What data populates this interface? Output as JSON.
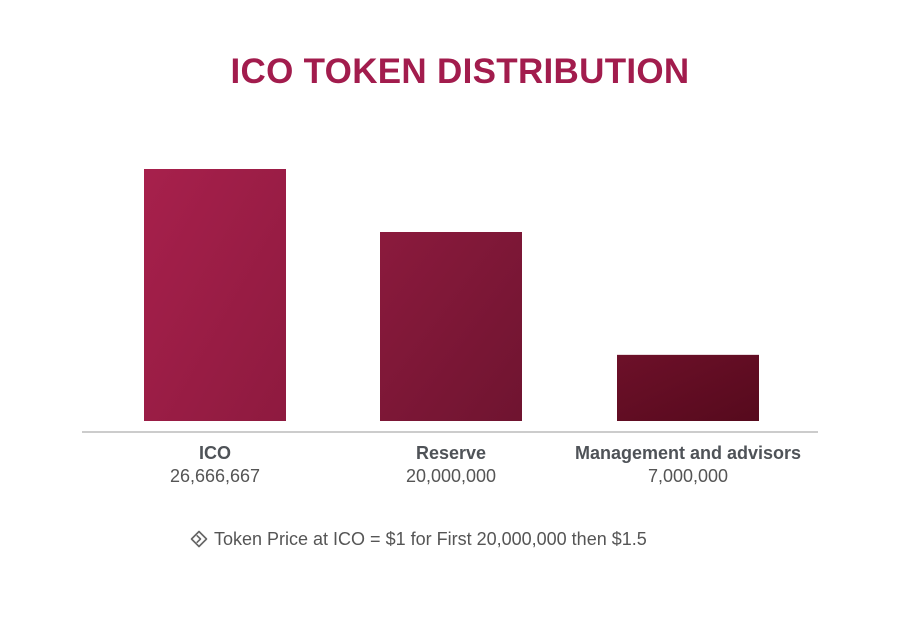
{
  "colors": {
    "title": "#a21c4d",
    "axis": "#9a9a9a",
    "label_bold": "#4f5358",
    "label_value": "#555555",
    "bar_gradient": [
      [
        "#a7204c",
        "#8e1a3f"
      ],
      [
        "#8b1a3d",
        "#6f1430"
      ],
      [
        "#6d1029",
        "#560a1d"
      ]
    ]
  },
  "chart_data": {
    "type": "bar",
    "title": "ICO TOKEN DISTRIBUTION",
    "categories": [
      "ICO",
      "Reserve",
      "Management and advisors"
    ],
    "value_labels": [
      "26,666,667",
      "20,000,000",
      "7,000,000"
    ],
    "values": [
      26666667,
      20000000,
      7000000
    ],
    "ylim": [
      0,
      30000000
    ],
    "grid": false,
    "legend": "none",
    "xlabel": "",
    "ylabel": ""
  },
  "footnote": {
    "icon": "diamond-arrow-icon",
    "text": "Token Price at ICO = $1 for First 20,000,000 then $1.5"
  }
}
